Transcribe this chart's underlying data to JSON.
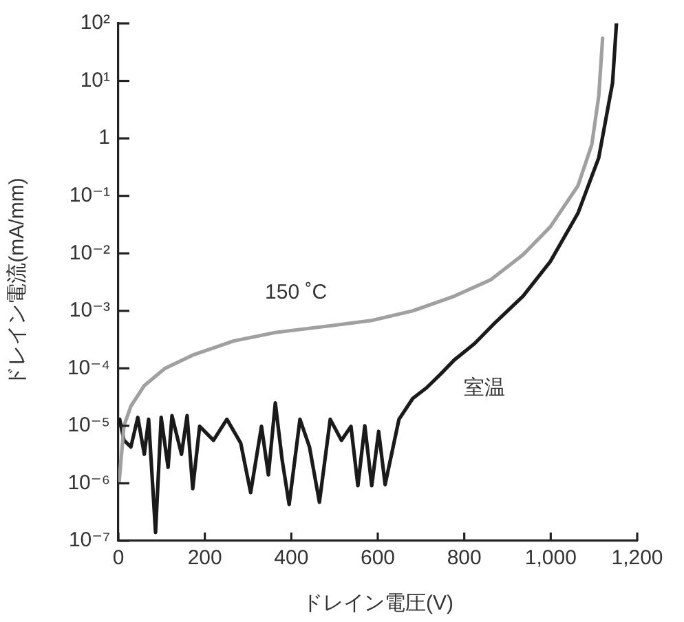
{
  "chart_data": {
    "type": "line",
    "xlabel": "ドレイン電圧(V)",
    "ylabel": "ドレイン電流(mA/mm)",
    "log": "y",
    "legend": false,
    "grid": false,
    "xlim": [
      0,
      1200
    ],
    "xticks": [
      0,
      200,
      400,
      600,
      800,
      {
        "value": 1000,
        "label": "1,000"
      },
      {
        "value": 1200,
        "label": "1,200"
      }
    ],
    "ylim": [
      1e-07,
      100
    ],
    "yticks": [
      {
        "value": 100,
        "label": "10²"
      },
      {
        "value": 10,
        "label": "10¹"
      },
      1,
      {
        "value": 0.1,
        "label": "10⁻¹"
      },
      {
        "value": 0.01,
        "label": "10⁻²"
      },
      {
        "value": 0.001,
        "label": "10⁻³"
      },
      {
        "value": 0.0001,
        "label": "10⁻⁴"
      },
      {
        "value": 1e-05,
        "label": "10⁻⁵"
      },
      {
        "value": 1e-06,
        "label": "10⁻⁶"
      },
      {
        "value": 1e-07,
        "label": "10⁻⁷"
      }
    ],
    "series": [
      {
        "name": "150 ˚C",
        "color": "#a0a0a0",
        "x": [
          2,
          13,
          29,
          60,
          108,
          172,
          267,
          363,
          490,
          586,
          681,
          777,
          862,
          936,
          999,
          1063,
          1095,
          1111,
          1120
        ],
        "values": [
          1.1e-06,
          1e-05,
          2.2e-05,
          5e-05,
          0.0001,
          0.00017,
          0.0003,
          0.00042,
          0.00055,
          0.00068,
          0.001,
          0.0018,
          0.0035,
          0.0095,
          0.029,
          0.15,
          0.78,
          5.4,
          55
        ]
      },
      {
        "name": "室温",
        "color": "#1a1a1a",
        "x": [
          3,
          13,
          29,
          45,
          60,
          70,
          86,
          99,
          115,
          124,
          146,
          159,
          172,
          188,
          220,
          251,
          283,
          306,
          331,
          347,
          363,
          379,
          395,
          420,
          442,
          465,
          490,
          516,
          538,
          554,
          570,
          586,
          602,
          617,
          649,
          681,
          713,
          745,
          777,
          824,
          872,
          936,
          999,
          1063,
          1111,
          1143,
          1152
        ],
        "values": [
          1.3e-05,
          5.6e-06,
          4.3e-06,
          1.4e-05,
          3.2e-06,
          1.3e-05,
          1.4e-07,
          1.4e-05,
          1.9e-06,
          1.5e-05,
          3.2e-06,
          1.5e-05,
          8.1e-07,
          9.8e-06,
          5.6e-06,
          1.3e-05,
          5e-06,
          6.9e-07,
          9.8e-06,
          1.4e-06,
          2.5e-05,
          2.5e-06,
          4.3e-07,
          1.3e-05,
          4.3e-06,
          4.7e-07,
          1.3e-05,
          5.6e-06,
          9.8e-06,
          9.1e-07,
          1e-05,
          9.1e-07,
          8e-06,
          9.5e-07,
          1.3e-05,
          3e-05,
          4.6e-05,
          7.9e-05,
          0.00014,
          0.00027,
          0.00063,
          0.0018,
          0.0072,
          0.05,
          0.46,
          9.3,
          100
        ]
      }
    ]
  }
}
